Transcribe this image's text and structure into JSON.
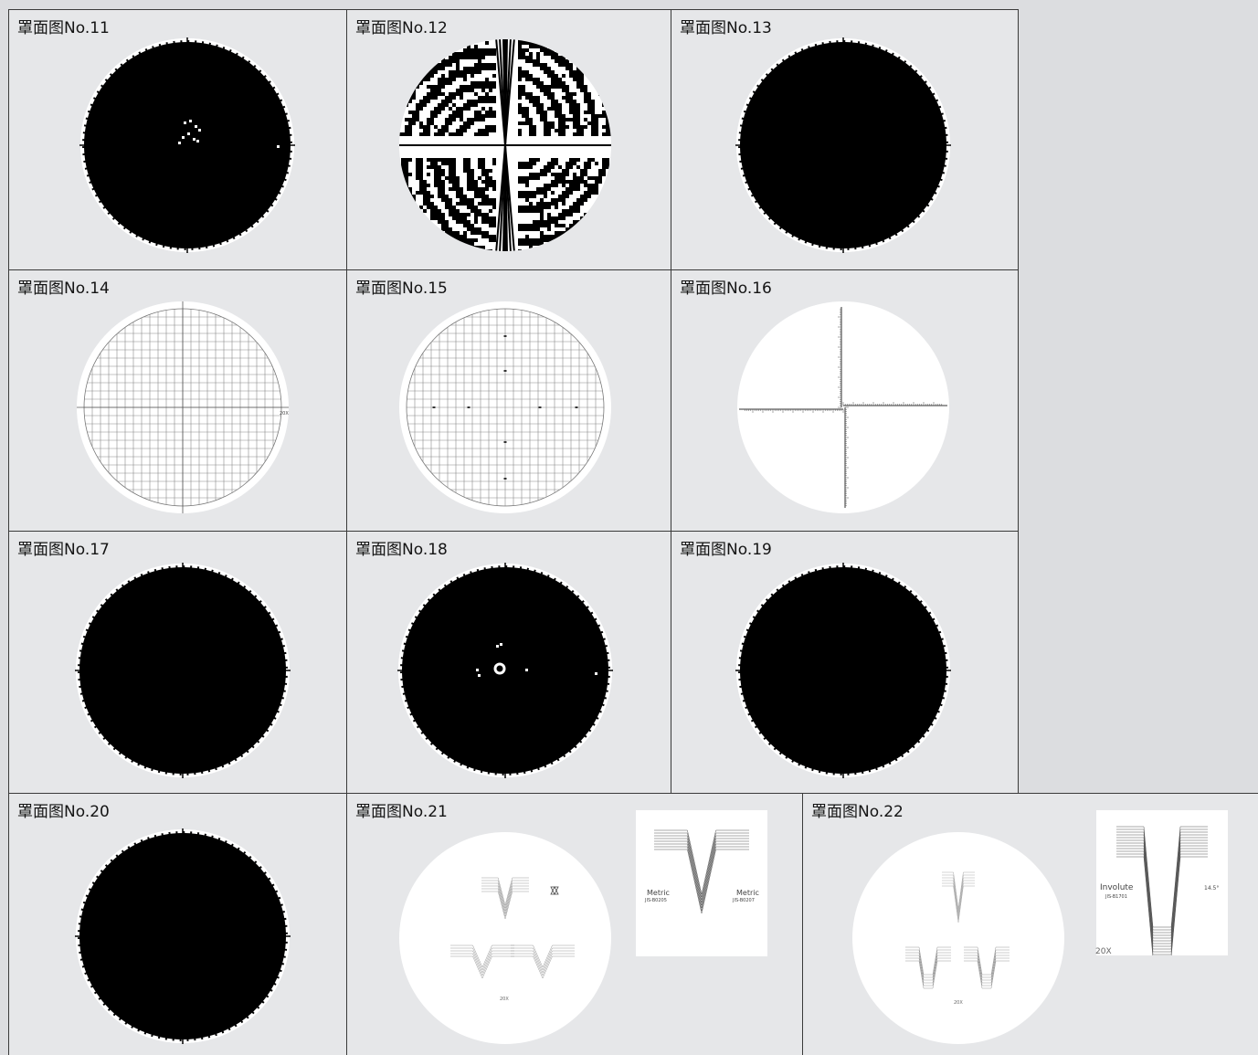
{
  "page": {
    "colors": {
      "cell_background": "#e6e7e9",
      "page_background": "#dcdde0",
      "grid_line": "#3a3a3a",
      "disc_dark": "#000000",
      "disc_light": "#ffffff"
    }
  },
  "cells": [
    {
      "id": "no11",
      "title": "罩面图No.11",
      "pattern": "dark-speckle-disc"
    },
    {
      "id": "no12",
      "title": "罩面图No.12",
      "pattern": "interference-cross"
    },
    {
      "id": "no13",
      "title": "罩面图No.13",
      "pattern": "dark-disc"
    },
    {
      "id": "no14",
      "title": "罩面图No.14",
      "pattern": "fine-grid-crosshair",
      "label": "20X"
    },
    {
      "id": "no15",
      "title": "罩面图No.15",
      "pattern": "fine-grid"
    },
    {
      "id": "no16",
      "title": "罩面图No.16",
      "pattern": "scale-crosshair"
    },
    {
      "id": "no17",
      "title": "罩面图No.17",
      "pattern": "dark-disc"
    },
    {
      "id": "no18",
      "title": "罩面图No.18",
      "pattern": "dark-speckle-disc"
    },
    {
      "id": "no19",
      "title": "罩面图No.19",
      "pattern": "dark-disc"
    },
    {
      "id": "no20",
      "title": "罩面图No.20",
      "pattern": "dark-disc"
    },
    {
      "id": "no21",
      "title": "罩面图No.21",
      "pattern": "thread-templates",
      "disc_label": "20X",
      "inset": {
        "left_label": "Metric",
        "left_sub": "JIS-B0205",
        "right_label": "Metric",
        "right_sub": "JIS-B0207"
      }
    },
    {
      "id": "no22",
      "title": "罩面图No.22",
      "pattern": "gear-templates",
      "disc_label": "20X",
      "inset": {
        "left_label": "Involute",
        "left_sub": "JIS-B1701",
        "right_label": "14.5°"
      },
      "inset_caption": "20X"
    }
  ]
}
